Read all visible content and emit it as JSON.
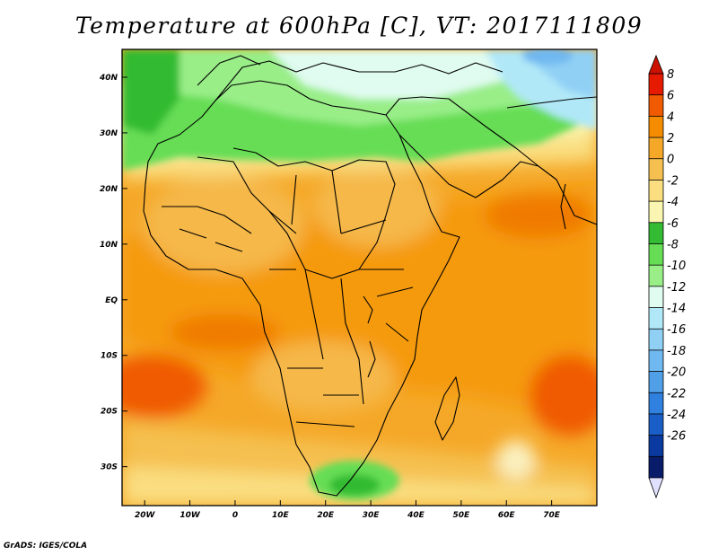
{
  "title": "Temperature at 600hPa [C], VT: 2017111809",
  "credit": "GrADS: IGES/COLA",
  "map": {
    "lat_labels": [
      "40N",
      "30N",
      "20N",
      "10N",
      "EQ",
      "10S",
      "20S",
      "30S"
    ],
    "lat_values": [
      40,
      30,
      20,
      10,
      0,
      -10,
      -20,
      -30
    ],
    "lon_labels": [
      "20W",
      "10W",
      "0",
      "10E",
      "20E",
      "30E",
      "40E",
      "50E",
      "60E",
      "70E"
    ],
    "lon_values": [
      -20,
      -10,
      0,
      10,
      20,
      30,
      40,
      50,
      60,
      70
    ]
  },
  "colorbar": {
    "labels": [
      "8",
      "6",
      "4",
      "2",
      "0",
      "-2",
      "-4",
      "-6",
      "-8",
      "-10",
      "-12",
      "-14",
      "-16",
      "-18",
      "-20",
      "-22",
      "-24",
      "-26"
    ],
    "colors": [
      "#e51a00",
      "#f05a00",
      "#f58c00",
      "#f5a828",
      "#f5c050",
      "#fade80",
      "#faf5b0",
      "#33bb33",
      "#66dd55",
      "#99ee88",
      "#e0fbf0",
      "#b0e8f8",
      "#90d0f5",
      "#70b8f0",
      "#50a0e8",
      "#3080e0",
      "#1a5ec8",
      "#0a3aa0",
      "#081c6a"
    ],
    "over_color": "#cc1100",
    "under_color": "#e0e0ff"
  }
}
